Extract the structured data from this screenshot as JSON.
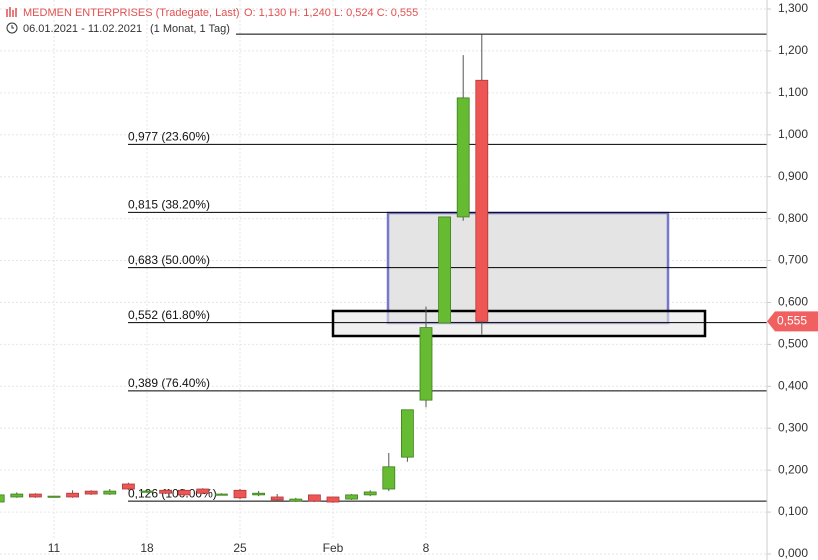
{
  "chart_data": {
    "type": "candlestick",
    "title": "MEDMEN ENTERPRISES (Tradegate, Last)",
    "quote": "O: 1,130  H: 1,240  L: 0,524  C: 0,555",
    "date_range": "06.01.2021 - 11.02.2021",
    "period": "(1 Monat, 1 Tag)",
    "categories": [
      null,
      null,
      null,
      "11",
      null,
      null,
      null,
      null,
      "18",
      null,
      null,
      null,
      null,
      "25",
      null,
      null,
      null,
      null,
      "Feb",
      null,
      null,
      null,
      null,
      "8",
      null,
      null,
      null
    ],
    "open": [
      0.124,
      0.136,
      0.143,
      0.138,
      0.145,
      0.15,
      0.143,
      0.167,
      0.15,
      0.152,
      0.152,
      0.155,
      0.143,
      0.152,
      0.141,
      0.136,
      0.126,
      0.141,
      0.136,
      0.131,
      0.141,
      0.155,
      0.231,
      0.367,
      0.551,
      0.804,
      1.13
    ],
    "high": [
      0.142,
      0.147,
      0.145,
      0.139,
      0.152,
      0.152,
      0.155,
      0.17,
      0.155,
      0.155,
      0.155,
      0.157,
      0.145,
      0.155,
      0.15,
      0.143,
      0.134,
      0.141,
      0.136,
      0.143,
      0.152,
      0.241,
      0.344,
      0.59,
      0.804,
      1.19,
      1.24
    ],
    "low": [
      0.122,
      0.134,
      0.134,
      0.137,
      0.134,
      0.141,
      0.141,
      0.152,
      0.148,
      0.143,
      0.138,
      0.143,
      0.141,
      0.131,
      0.138,
      0.126,
      0.124,
      0.124,
      0.122,
      0.129,
      0.138,
      0.15,
      0.22,
      0.35,
      0.551,
      0.795,
      0.524
    ],
    "close": [
      0.141,
      0.143,
      0.136,
      0.138,
      0.136,
      0.143,
      0.15,
      0.155,
      0.15,
      0.145,
      0.141,
      0.145,
      0.143,
      0.134,
      0.145,
      0.129,
      0.131,
      0.126,
      0.124,
      0.141,
      0.148,
      0.208,
      0.344,
      0.54,
      0.804,
      1.088,
      0.555
    ],
    "up_color": "#66bb33",
    "down_color": "#ee5555",
    "ylim": [
      0,
      1.3
    ],
    "yticks": [
      {
        "value": 0,
        "label": "0,000"
      },
      {
        "value": 0.1,
        "label": "0,100"
      },
      {
        "value": 0.2,
        "label": "0,200"
      },
      {
        "value": 0.3,
        "label": "0,300"
      },
      {
        "value": 0.4,
        "label": "0,400"
      },
      {
        "value": 0.5,
        "label": "0,500"
      },
      {
        "value": 0.6,
        "label": "0,600"
      },
      {
        "value": 0.7,
        "label": "0,700"
      },
      {
        "value": 0.8,
        "label": "0,800"
      },
      {
        "value": 0.9,
        "label": "0,900"
      },
      {
        "value": 1.0,
        "label": "1,000"
      },
      {
        "value": 1.1,
        "label": "1,100"
      },
      {
        "value": 1.2,
        "label": "1,200"
      },
      {
        "value": 1.3,
        "label": "1,300"
      }
    ],
    "grid": true,
    "fib_high": 1.24,
    "fib_levels": [
      {
        "value": 0.977,
        "label": "0,977 (23.60%)"
      },
      {
        "value": 0.815,
        "label": "0,815 (38.20%)"
      },
      {
        "value": 0.683,
        "label": "0,683 (50.00%)"
      },
      {
        "value": 0.552,
        "label": "0,552 (61.80%)"
      },
      {
        "value": 0.389,
        "label": "0,389 (76.40%)"
      },
      {
        "value": 0.126,
        "label": "0,126 (100.00%)"
      }
    ],
    "last_price": {
      "value": 0.555,
      "label": "0,555"
    }
  }
}
